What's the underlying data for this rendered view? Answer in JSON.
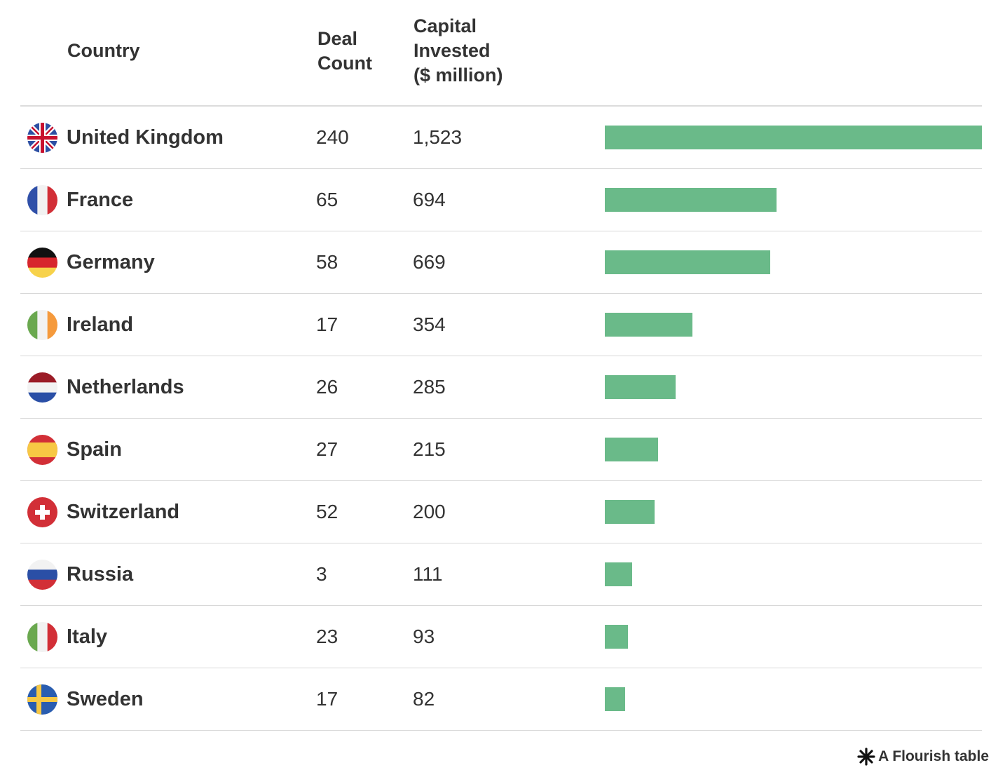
{
  "chart_data": {
    "type": "table",
    "columns": [
      "Country",
      "Deal\nCount",
      "Capital\nInvested\n($ million)"
    ],
    "rows": [
      {
        "country": "United Kingdom",
        "flag": "uk-flag-icon",
        "deal_count": "240",
        "capital": "1,523",
        "value": 1523
      },
      {
        "country": "France",
        "flag": "france-flag-icon",
        "deal_count": "65",
        "capital": "694",
        "value": 694
      },
      {
        "country": "Germany",
        "flag": "germany-flag-icon",
        "deal_count": "58",
        "capital": "669",
        "value": 669
      },
      {
        "country": "Ireland",
        "flag": "ireland-flag-icon",
        "deal_count": "17",
        "capital": "354",
        "value": 354
      },
      {
        "country": "Netherlands",
        "flag": "netherlands-flag-icon",
        "deal_count": "26",
        "capital": "285",
        "value": 285
      },
      {
        "country": "Spain",
        "flag": "spain-flag-icon",
        "deal_count": "27",
        "capital": "215",
        "value": 215
      },
      {
        "country": "Switzerland",
        "flag": "switzerland-flag-icon",
        "deal_count": "52",
        "capital": "200",
        "value": 200
      },
      {
        "country": "Russia",
        "flag": "russia-flag-icon",
        "deal_count": "3",
        "capital": "111",
        "value": 111
      },
      {
        "country": "Italy",
        "flag": "italy-flag-icon",
        "deal_count": "23",
        "capital": "93",
        "value": 93
      },
      {
        "country": "Sweden",
        "flag": "sweden-flag-icon",
        "deal_count": "17",
        "capital": "82",
        "value": 82
      }
    ],
    "bar_max": 1523,
    "bar_color": "#6aba89"
  },
  "footer": {
    "text": "A Flourish table"
  }
}
